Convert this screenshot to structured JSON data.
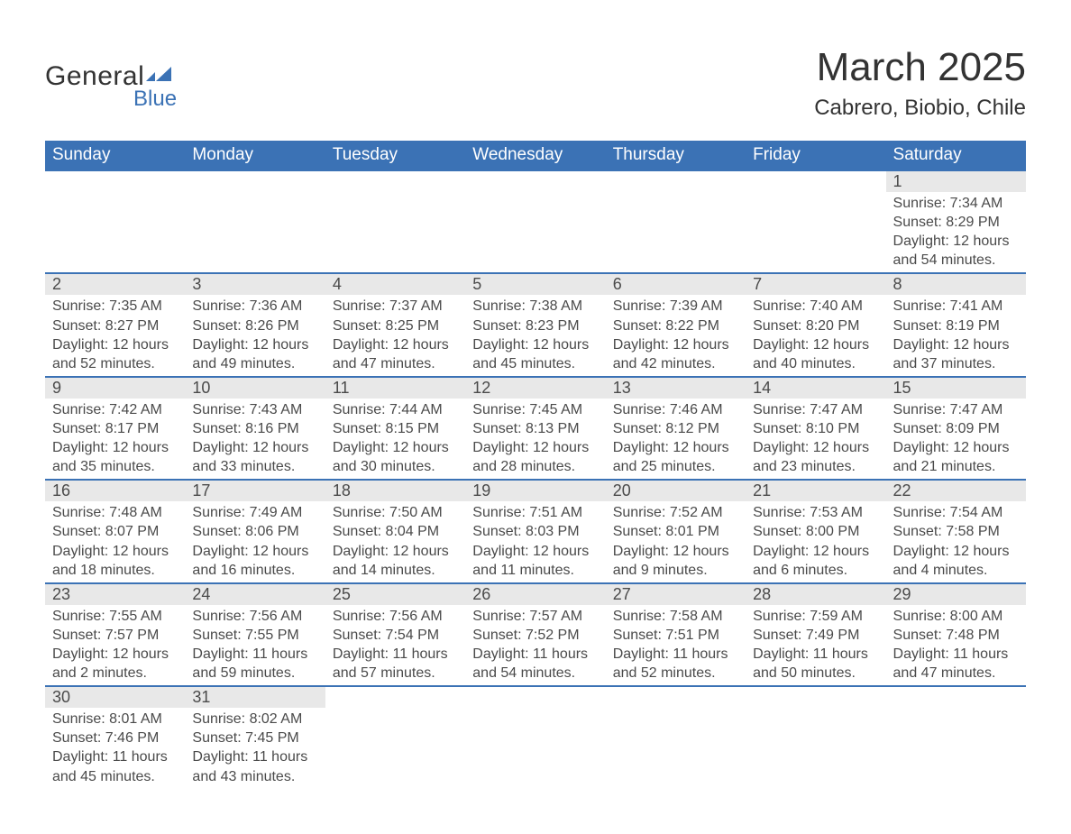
{
  "logo": {
    "general": "General",
    "blue": "Blue",
    "flag_color": "#3b72b5"
  },
  "title": "March 2025",
  "location": "Cabrero, Biobio, Chile",
  "colors": {
    "header_bg": "#3b72b5",
    "header_text": "#ffffff",
    "daynum_bg": "#e8e8e8",
    "body_bg": "#ffffff",
    "text": "#4a4a4a",
    "title_text": "#333333",
    "row_separator": "#3b72b5"
  },
  "typography": {
    "title_fontsize": 44,
    "location_fontsize": 24,
    "dayheader_fontsize": 19,
    "daynum_fontsize": 18,
    "cell_fontsize": 16
  },
  "day_headers": [
    "Sunday",
    "Monday",
    "Tuesday",
    "Wednesday",
    "Thursday",
    "Friday",
    "Saturday"
  ],
  "weeks": [
    [
      null,
      null,
      null,
      null,
      null,
      null,
      {
        "n": "1",
        "sr": "Sunrise: 7:34 AM",
        "ss": "Sunset: 8:29 PM",
        "d1": "Daylight: 12 hours",
        "d2": "and 54 minutes."
      }
    ],
    [
      {
        "n": "2",
        "sr": "Sunrise: 7:35 AM",
        "ss": "Sunset: 8:27 PM",
        "d1": "Daylight: 12 hours",
        "d2": "and 52 minutes."
      },
      {
        "n": "3",
        "sr": "Sunrise: 7:36 AM",
        "ss": "Sunset: 8:26 PM",
        "d1": "Daylight: 12 hours",
        "d2": "and 49 minutes."
      },
      {
        "n": "4",
        "sr": "Sunrise: 7:37 AM",
        "ss": "Sunset: 8:25 PM",
        "d1": "Daylight: 12 hours",
        "d2": "and 47 minutes."
      },
      {
        "n": "5",
        "sr": "Sunrise: 7:38 AM",
        "ss": "Sunset: 8:23 PM",
        "d1": "Daylight: 12 hours",
        "d2": "and 45 minutes."
      },
      {
        "n": "6",
        "sr": "Sunrise: 7:39 AM",
        "ss": "Sunset: 8:22 PM",
        "d1": "Daylight: 12 hours",
        "d2": "and 42 minutes."
      },
      {
        "n": "7",
        "sr": "Sunrise: 7:40 AM",
        "ss": "Sunset: 8:20 PM",
        "d1": "Daylight: 12 hours",
        "d2": "and 40 minutes."
      },
      {
        "n": "8",
        "sr": "Sunrise: 7:41 AM",
        "ss": "Sunset: 8:19 PM",
        "d1": "Daylight: 12 hours",
        "d2": "and 37 minutes."
      }
    ],
    [
      {
        "n": "9",
        "sr": "Sunrise: 7:42 AM",
        "ss": "Sunset: 8:17 PM",
        "d1": "Daylight: 12 hours",
        "d2": "and 35 minutes."
      },
      {
        "n": "10",
        "sr": "Sunrise: 7:43 AM",
        "ss": "Sunset: 8:16 PM",
        "d1": "Daylight: 12 hours",
        "d2": "and 33 minutes."
      },
      {
        "n": "11",
        "sr": "Sunrise: 7:44 AM",
        "ss": "Sunset: 8:15 PM",
        "d1": "Daylight: 12 hours",
        "d2": "and 30 minutes."
      },
      {
        "n": "12",
        "sr": "Sunrise: 7:45 AM",
        "ss": "Sunset: 8:13 PM",
        "d1": "Daylight: 12 hours",
        "d2": "and 28 minutes."
      },
      {
        "n": "13",
        "sr": "Sunrise: 7:46 AM",
        "ss": "Sunset: 8:12 PM",
        "d1": "Daylight: 12 hours",
        "d2": "and 25 minutes."
      },
      {
        "n": "14",
        "sr": "Sunrise: 7:47 AM",
        "ss": "Sunset: 8:10 PM",
        "d1": "Daylight: 12 hours",
        "d2": "and 23 minutes."
      },
      {
        "n": "15",
        "sr": "Sunrise: 7:47 AM",
        "ss": "Sunset: 8:09 PM",
        "d1": "Daylight: 12 hours",
        "d2": "and 21 minutes."
      }
    ],
    [
      {
        "n": "16",
        "sr": "Sunrise: 7:48 AM",
        "ss": "Sunset: 8:07 PM",
        "d1": "Daylight: 12 hours",
        "d2": "and 18 minutes."
      },
      {
        "n": "17",
        "sr": "Sunrise: 7:49 AM",
        "ss": "Sunset: 8:06 PM",
        "d1": "Daylight: 12 hours",
        "d2": "and 16 minutes."
      },
      {
        "n": "18",
        "sr": "Sunrise: 7:50 AM",
        "ss": "Sunset: 8:04 PM",
        "d1": "Daylight: 12 hours",
        "d2": "and 14 minutes."
      },
      {
        "n": "19",
        "sr": "Sunrise: 7:51 AM",
        "ss": "Sunset: 8:03 PM",
        "d1": "Daylight: 12 hours",
        "d2": "and 11 minutes."
      },
      {
        "n": "20",
        "sr": "Sunrise: 7:52 AM",
        "ss": "Sunset: 8:01 PM",
        "d1": "Daylight: 12 hours",
        "d2": "and 9 minutes."
      },
      {
        "n": "21",
        "sr": "Sunrise: 7:53 AM",
        "ss": "Sunset: 8:00 PM",
        "d1": "Daylight: 12 hours",
        "d2": "and 6 minutes."
      },
      {
        "n": "22",
        "sr": "Sunrise: 7:54 AM",
        "ss": "Sunset: 7:58 PM",
        "d1": "Daylight: 12 hours",
        "d2": "and 4 minutes."
      }
    ],
    [
      {
        "n": "23",
        "sr": "Sunrise: 7:55 AM",
        "ss": "Sunset: 7:57 PM",
        "d1": "Daylight: 12 hours",
        "d2": "and 2 minutes."
      },
      {
        "n": "24",
        "sr": "Sunrise: 7:56 AM",
        "ss": "Sunset: 7:55 PM",
        "d1": "Daylight: 11 hours",
        "d2": "and 59 minutes."
      },
      {
        "n": "25",
        "sr": "Sunrise: 7:56 AM",
        "ss": "Sunset: 7:54 PM",
        "d1": "Daylight: 11 hours",
        "d2": "and 57 minutes."
      },
      {
        "n": "26",
        "sr": "Sunrise: 7:57 AM",
        "ss": "Sunset: 7:52 PM",
        "d1": "Daylight: 11 hours",
        "d2": "and 54 minutes."
      },
      {
        "n": "27",
        "sr": "Sunrise: 7:58 AM",
        "ss": "Sunset: 7:51 PM",
        "d1": "Daylight: 11 hours",
        "d2": "and 52 minutes."
      },
      {
        "n": "28",
        "sr": "Sunrise: 7:59 AM",
        "ss": "Sunset: 7:49 PM",
        "d1": "Daylight: 11 hours",
        "d2": "and 50 minutes."
      },
      {
        "n": "29",
        "sr": "Sunrise: 8:00 AM",
        "ss": "Sunset: 7:48 PM",
        "d1": "Daylight: 11 hours",
        "d2": "and 47 minutes."
      }
    ],
    [
      {
        "n": "30",
        "sr": "Sunrise: 8:01 AM",
        "ss": "Sunset: 7:46 PM",
        "d1": "Daylight: 11 hours",
        "d2": "and 45 minutes."
      },
      {
        "n": "31",
        "sr": "Sunrise: 8:02 AM",
        "ss": "Sunset: 7:45 PM",
        "d1": "Daylight: 11 hours",
        "d2": "and 43 minutes."
      },
      null,
      null,
      null,
      null,
      null
    ]
  ]
}
